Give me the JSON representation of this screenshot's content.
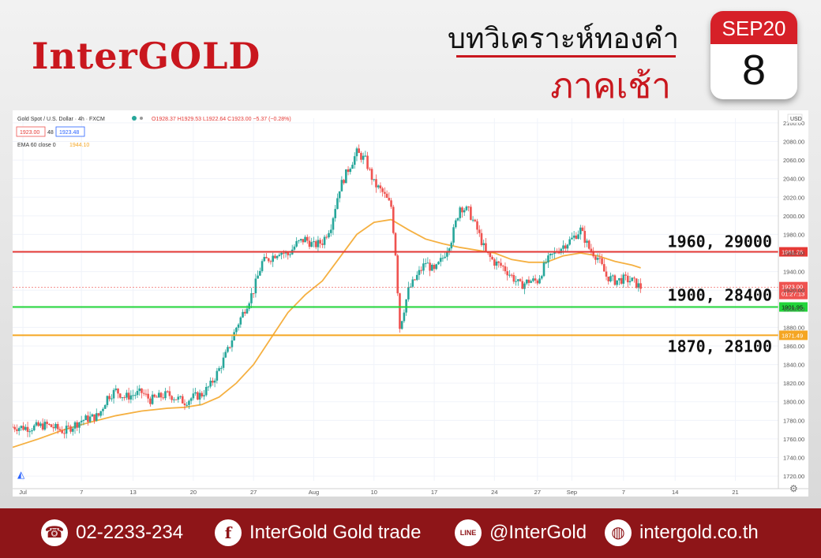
{
  "header": {
    "logo": "InterGOLD",
    "title_line1": "บทวิเคราะห์ทองคำ",
    "title_line2": "ภาคเช้า",
    "calendar_month": "SEP20",
    "calendar_day": "8"
  },
  "chart_header": {
    "symbol": "Gold Spot / U.S. Dollar · 4h · FXCM",
    "ohlc": "O1928.37 H1929.53 L1922.64 C1923.00 −5.37 (−0.28%)",
    "bid": "1923.00",
    "spread": "48",
    "ask": "1923.48",
    "ema_label": "EMA 60 close 0",
    "ema_value": "1944.10",
    "currency": "USD"
  },
  "colors": {
    "red_level": "#e53935",
    "green_level": "#22d43a",
    "orange_level": "#f5a623",
    "ema": "#f5b041",
    "candle_up": "#26a69a",
    "candle_down": "#ef5350",
    "brand": "#c9171e",
    "footer": "#8e1518"
  },
  "chart_data": {
    "type": "candlestick",
    "ylim": [
      1715,
      2105
    ],
    "y_ticks": [
      1720,
      1740,
      1760,
      1780,
      1800,
      1820,
      1840,
      1860,
      1880,
      1900,
      1920,
      1940,
      1960,
      1980,
      2000,
      2020,
      2040,
      2060,
      2080,
      2100
    ],
    "y_tick_labels": [
      "1720.00",
      "1740.00",
      "1760.00",
      "1780.00",
      "1800.00",
      "1820.00",
      "1840.00",
      "1860.00",
      "1880.00",
      "1900.00",
      "1920.00",
      "1940.00",
      "1960.00",
      "1980.00",
      "2000.00",
      "2020.00",
      "2040.00",
      "2060.00",
      "2080.00",
      "2100.00"
    ],
    "x_ticks": [
      "Jul",
      "7",
      "13",
      "20",
      "27",
      "Aug",
      "10",
      "17",
      "24",
      "27",
      "Sep",
      "7",
      "14",
      "21"
    ],
    "x_tick_pos": [
      0.2,
      7,
      13,
      20,
      27,
      34,
      41,
      48,
      55,
      60,
      64,
      70,
      76,
      83
    ],
    "x_range": [
      -1,
      88
    ],
    "close_path": [
      [
        -1,
        1773
      ],
      [
        1,
        1772
      ],
      [
        3,
        1775
      ],
      [
        5,
        1768
      ],
      [
        7,
        1780
      ],
      [
        9,
        1785
      ],
      [
        10,
        1805
      ],
      [
        11,
        1812
      ],
      [
        12,
        1805
      ],
      [
        14,
        1810
      ],
      [
        15,
        1802
      ],
      [
        17,
        1808
      ],
      [
        18,
        1804
      ],
      [
        19,
        1800
      ],
      [
        20,
        1805
      ],
      [
        21,
        1808
      ],
      [
        22,
        1818
      ],
      [
        23,
        1835
      ],
      [
        24,
        1855
      ],
      [
        25,
        1880
      ],
      [
        26,
        1900
      ],
      [
        27,
        1920
      ],
      [
        28,
        1950
      ],
      [
        29,
        1955
      ],
      [
        30,
        1962
      ],
      [
        31,
        1958
      ],
      [
        32,
        1970
      ],
      [
        33,
        1975
      ],
      [
        34,
        1968
      ],
      [
        35,
        1972
      ],
      [
        36,
        1990
      ],
      [
        37,
        2030
      ],
      [
        38,
        2050
      ],
      [
        39,
        2068
      ],
      [
        40,
        2060
      ],
      [
        41,
        2035
      ],
      [
        42,
        2025
      ],
      [
        43,
        2010
      ],
      [
        43.5,
        1960
      ],
      [
        44,
        1880
      ],
      [
        45,
        1920
      ],
      [
        46,
        1935
      ],
      [
        47,
        1950
      ],
      [
        48,
        1940
      ],
      [
        49,
        1955
      ],
      [
        50,
        1975
      ],
      [
        51,
        2010
      ],
      [
        52,
        2005
      ],
      [
        53,
        1985
      ],
      [
        54,
        1960
      ],
      [
        55,
        1950
      ],
      [
        56,
        1945
      ],
      [
        57,
        1935
      ],
      [
        58,
        1925
      ],
      [
        59,
        1930
      ],
      [
        60,
        1930
      ],
      [
        61,
        1950
      ],
      [
        62,
        1960
      ],
      [
        63,
        1968
      ],
      [
        64,
        1975
      ],
      [
        65,
        1985
      ],
      [
        66,
        1965
      ],
      [
        67,
        1955
      ],
      [
        68,
        1935
      ],
      [
        69,
        1930
      ],
      [
        70,
        1932
      ],
      [
        71,
        1930
      ],
      [
        72,
        1923
      ]
    ],
    "ema60": [
      [
        -1,
        1751
      ],
      [
        2,
        1760
      ],
      [
        5,
        1770
      ],
      [
        8,
        1778
      ],
      [
        11,
        1785
      ],
      [
        14,
        1790
      ],
      [
        17,
        1793
      ],
      [
        19,
        1794
      ],
      [
        21,
        1797
      ],
      [
        23,
        1805
      ],
      [
        25,
        1820
      ],
      [
        27,
        1840
      ],
      [
        29,
        1868
      ],
      [
        31,
        1896
      ],
      [
        33,
        1915
      ],
      [
        35,
        1930
      ],
      [
        37,
        1955
      ],
      [
        39,
        1980
      ],
      [
        41,
        1993
      ],
      [
        43,
        1996
      ],
      [
        45,
        1985
      ],
      [
        47,
        1975
      ],
      [
        49,
        1970
      ],
      [
        51,
        1966
      ],
      [
        53,
        1963
      ],
      [
        55,
        1960
      ],
      [
        57,
        1953
      ],
      [
        59,
        1950
      ],
      [
        61,
        1950
      ],
      [
        63,
        1957
      ],
      [
        65,
        1960
      ],
      [
        67,
        1957
      ],
      [
        69,
        1951
      ],
      [
        71,
        1947
      ],
      [
        72,
        1944
      ]
    ],
    "levels": [
      {
        "price": 1961.26,
        "label": "1960, 29000",
        "price_tag": "1961.26",
        "color": "#e53935"
      },
      {
        "price": 1901.95,
        "label": "1900, 28400",
        "price_tag": "1901.95",
        "color": "#22d43a"
      },
      {
        "price": 1871.49,
        "label": "1870, 28100",
        "price_tag": "1871.49",
        "color": "#f5a623"
      }
    ],
    "current_price": "1923.00",
    "countdown": "01:27:13"
  },
  "footer": {
    "phone": "02-2233-234",
    "facebook": "InterGold Gold trade",
    "line": "@InterGold",
    "website": "intergold.co.th",
    "line_badge": "LINE"
  }
}
